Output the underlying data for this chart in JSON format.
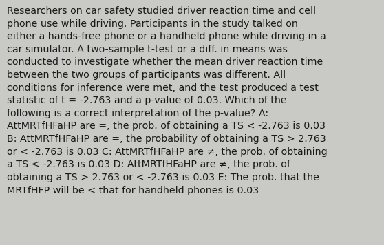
{
  "background_color": "#c9c9c6",
  "text_color": "#1a1a1a",
  "font_size": 10.3,
  "figsize": [
    5.58,
    3.56
  ],
  "dpi": 100,
  "text_lines": [
    "Researchers on car safety studied driver reaction time and cell",
    "phone use while driving. Participants in the study talked on",
    "either a hands-free phone or a handheld phone while driving in a",
    "car simulator. A two-sample t-test or a diff. in means was",
    "conducted to investigate whether the mean driver reaction time",
    "between the two groups of participants was different. All",
    "conditions for inference were met, and the test produced a test",
    "statistic of t = -2.763 and a p-value of 0.03. Which of the",
    "following is a correct interpretation of the p-value? A:",
    "AttMRTfHFaHP are =, the prob. of obtaining a TS < -2.763 is 0.03",
    "B: AttMRTfHFaHP are =, the probability of obtaining a TS > 2.763",
    "or < -2.763 is 0.03 C: AttMRTfHFaHP are ≠, the prob. of obtaining",
    "a TS < -2.763 is 0.03 D: AttMRTfHFaHP are ≠, the prob. of",
    "obtaining a TS > 2.763 or < -2.763 is 0.03 E: The prob. that the",
    "MRTfHFP will be < that for handheld phones is 0.03"
  ]
}
